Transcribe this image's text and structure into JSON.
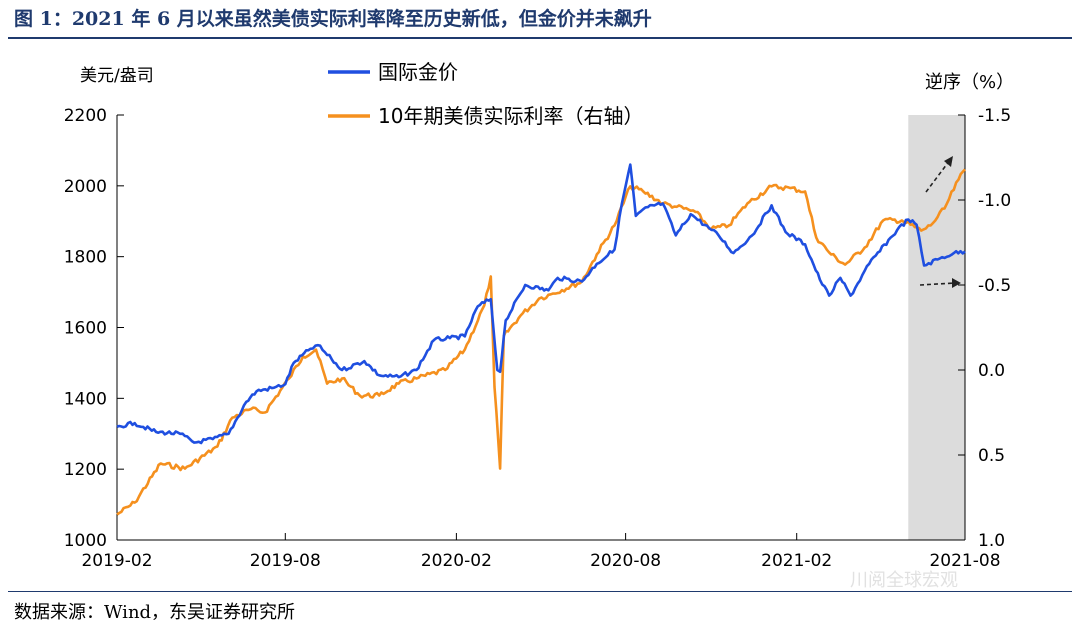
{
  "figure_title": "图 1：2021 年 6 月以来虽然美债实际利率降至历史新低，但金价并未飙升",
  "source_note": "数据来源：Wind，东吴证券研究所",
  "watermark": "川阅全球宏观",
  "colors": {
    "gold": "#1f4fe0",
    "rate": "#f5901e",
    "shade": "#dcdcdc",
    "title": "#1f3a6e"
  },
  "chart_data": {
    "type": "line",
    "left_axis": {
      "label": "美元/盎司",
      "ylim": [
        1000,
        2200
      ],
      "ticks": [
        1000,
        1200,
        1400,
        1600,
        1800,
        2000,
        2200
      ]
    },
    "right_axis": {
      "label": "逆序（%）",
      "inverted": true,
      "ylim": [
        1.0,
        -1.5
      ],
      "ticks": [
        1.0,
        0.5,
        0.0,
        -0.5,
        -1.0,
        -1.5
      ],
      "tick_labels": [
        "1.0",
        "0.5",
        "0.0",
        "-0.5",
        "-1.0",
        "-1.5"
      ]
    },
    "x_axis": {
      "range": [
        "2019-02",
        "2021-08"
      ],
      "tick_labels": [
        "2019-02",
        "2019-08",
        "2020-02",
        "2020-08",
        "2021-02",
        "2021-08"
      ]
    },
    "shaded_period": [
      "2021-06",
      "2021-08"
    ],
    "legend": {
      "placement": "top-center"
    },
    "series": [
      {
        "name": "国际金价",
        "axis": "left",
        "points": [
          [
            "2019-02-01",
            1320
          ],
          [
            "2019-02-20",
            1330
          ],
          [
            "2019-03-15",
            1305
          ],
          [
            "2019-04-10",
            1300
          ],
          [
            "2019-04-25",
            1275
          ],
          [
            "2019-05-15",
            1285
          ],
          [
            "2019-06-01",
            1300
          ],
          [
            "2019-06-20",
            1390
          ],
          [
            "2019-07-01",
            1420
          ],
          [
            "2019-07-20",
            1430
          ],
          [
            "2019-08-01",
            1440
          ],
          [
            "2019-08-10",
            1500
          ],
          [
            "2019-08-28",
            1540
          ],
          [
            "2019-09-05",
            1550
          ],
          [
            "2019-09-20",
            1510
          ],
          [
            "2019-10-01",
            1480
          ],
          [
            "2019-10-25",
            1505
          ],
          [
            "2019-11-10",
            1465
          ],
          [
            "2019-12-01",
            1460
          ],
          [
            "2019-12-20",
            1480
          ],
          [
            "2020-01-08",
            1565
          ],
          [
            "2020-01-25",
            1570
          ],
          [
            "2020-02-10",
            1575
          ],
          [
            "2020-02-24",
            1660
          ],
          [
            "2020-03-09",
            1680
          ],
          [
            "2020-03-16",
            1480
          ],
          [
            "2020-03-19",
            1475
          ],
          [
            "2020-03-25",
            1620
          ],
          [
            "2020-04-15",
            1720
          ],
          [
            "2020-05-10",
            1705
          ],
          [
            "2020-05-20",
            1740
          ],
          [
            "2020-06-15",
            1730
          ],
          [
            "2020-07-01",
            1780
          ],
          [
            "2020-07-20",
            1820
          ],
          [
            "2020-07-28",
            1950
          ],
          [
            "2020-08-06",
            2060
          ],
          [
            "2020-08-12",
            1915
          ],
          [
            "2020-08-25",
            1940
          ],
          [
            "2020-09-10",
            1950
          ],
          [
            "2020-09-24",
            1860
          ],
          [
            "2020-10-10",
            1920
          ],
          [
            "2020-10-30",
            1880
          ],
          [
            "2020-11-09",
            1860
          ],
          [
            "2020-11-25",
            1810
          ],
          [
            "2020-12-15",
            1860
          ],
          [
            "2021-01-05",
            1945
          ],
          [
            "2021-01-20",
            1870
          ],
          [
            "2021-02-10",
            1835
          ],
          [
            "2021-02-26",
            1735
          ],
          [
            "2021-03-08",
            1690
          ],
          [
            "2021-03-20",
            1740
          ],
          [
            "2021-03-31",
            1690
          ],
          [
            "2021-04-20",
            1780
          ],
          [
            "2021-05-20",
            1875
          ],
          [
            "2021-06-01",
            1905
          ],
          [
            "2021-06-10",
            1890
          ],
          [
            "2021-06-18",
            1775
          ],
          [
            "2021-07-05",
            1795
          ],
          [
            "2021-07-20",
            1810
          ],
          [
            "2021-08-01",
            1815
          ]
        ]
      },
      {
        "name": "10年期美债实际利率（右轴）",
        "axis": "right",
        "points": [
          [
            "2019-02-01",
            0.85
          ],
          [
            "2019-02-20",
            0.78
          ],
          [
            "2019-03-20",
            0.55
          ],
          [
            "2019-04-15",
            0.58
          ],
          [
            "2019-05-20",
            0.45
          ],
          [
            "2019-06-05",
            0.28
          ],
          [
            "2019-06-25",
            0.23
          ],
          [
            "2019-07-10",
            0.25
          ],
          [
            "2019-08-05",
            0.05
          ],
          [
            "2019-08-20",
            -0.08
          ],
          [
            "2019-09-03",
            -0.12
          ],
          [
            "2019-09-15",
            0.08
          ],
          [
            "2019-10-01",
            0.05
          ],
          [
            "2019-10-20",
            0.15
          ],
          [
            "2019-11-10",
            0.15
          ],
          [
            "2019-12-01",
            0.08
          ],
          [
            "2019-12-20",
            0.05
          ],
          [
            "2020-01-20",
            0.0
          ],
          [
            "2020-02-10",
            -0.12
          ],
          [
            "2020-03-02",
            -0.38
          ],
          [
            "2020-03-09",
            -0.55
          ],
          [
            "2020-03-13",
            0.1
          ],
          [
            "2020-03-19",
            0.58
          ],
          [
            "2020-03-23",
            -0.2
          ],
          [
            "2020-04-10",
            -0.32
          ],
          [
            "2020-04-30",
            -0.42
          ],
          [
            "2020-05-15",
            -0.45
          ],
          [
            "2020-06-15",
            -0.52
          ],
          [
            "2020-07-01",
            -0.68
          ],
          [
            "2020-07-20",
            -0.85
          ],
          [
            "2020-08-06",
            -1.08
          ],
          [
            "2020-08-20",
            -1.05
          ],
          [
            "2020-09-10",
            -0.98
          ],
          [
            "2020-09-25",
            -0.96
          ],
          [
            "2020-10-15",
            -0.93
          ],
          [
            "2020-11-01",
            -0.83
          ],
          [
            "2020-11-20",
            -0.85
          ],
          [
            "2020-12-10",
            -0.98
          ],
          [
            "2021-01-05",
            -1.08
          ],
          [
            "2021-01-25",
            -1.07
          ],
          [
            "2021-02-10",
            -1.05
          ],
          [
            "2021-02-22",
            -0.78
          ],
          [
            "2021-03-10",
            -0.68
          ],
          [
            "2021-03-25",
            -0.62
          ],
          [
            "2021-04-15",
            -0.72
          ],
          [
            "2021-05-05",
            -0.88
          ],
          [
            "2021-05-25",
            -0.88
          ],
          [
            "2021-06-15",
            -0.82
          ],
          [
            "2021-06-25",
            -0.85
          ],
          [
            "2021-07-10",
            -0.95
          ],
          [
            "2021-07-25",
            -1.12
          ],
          [
            "2021-08-01",
            -1.18
          ]
        ]
      }
    ]
  }
}
